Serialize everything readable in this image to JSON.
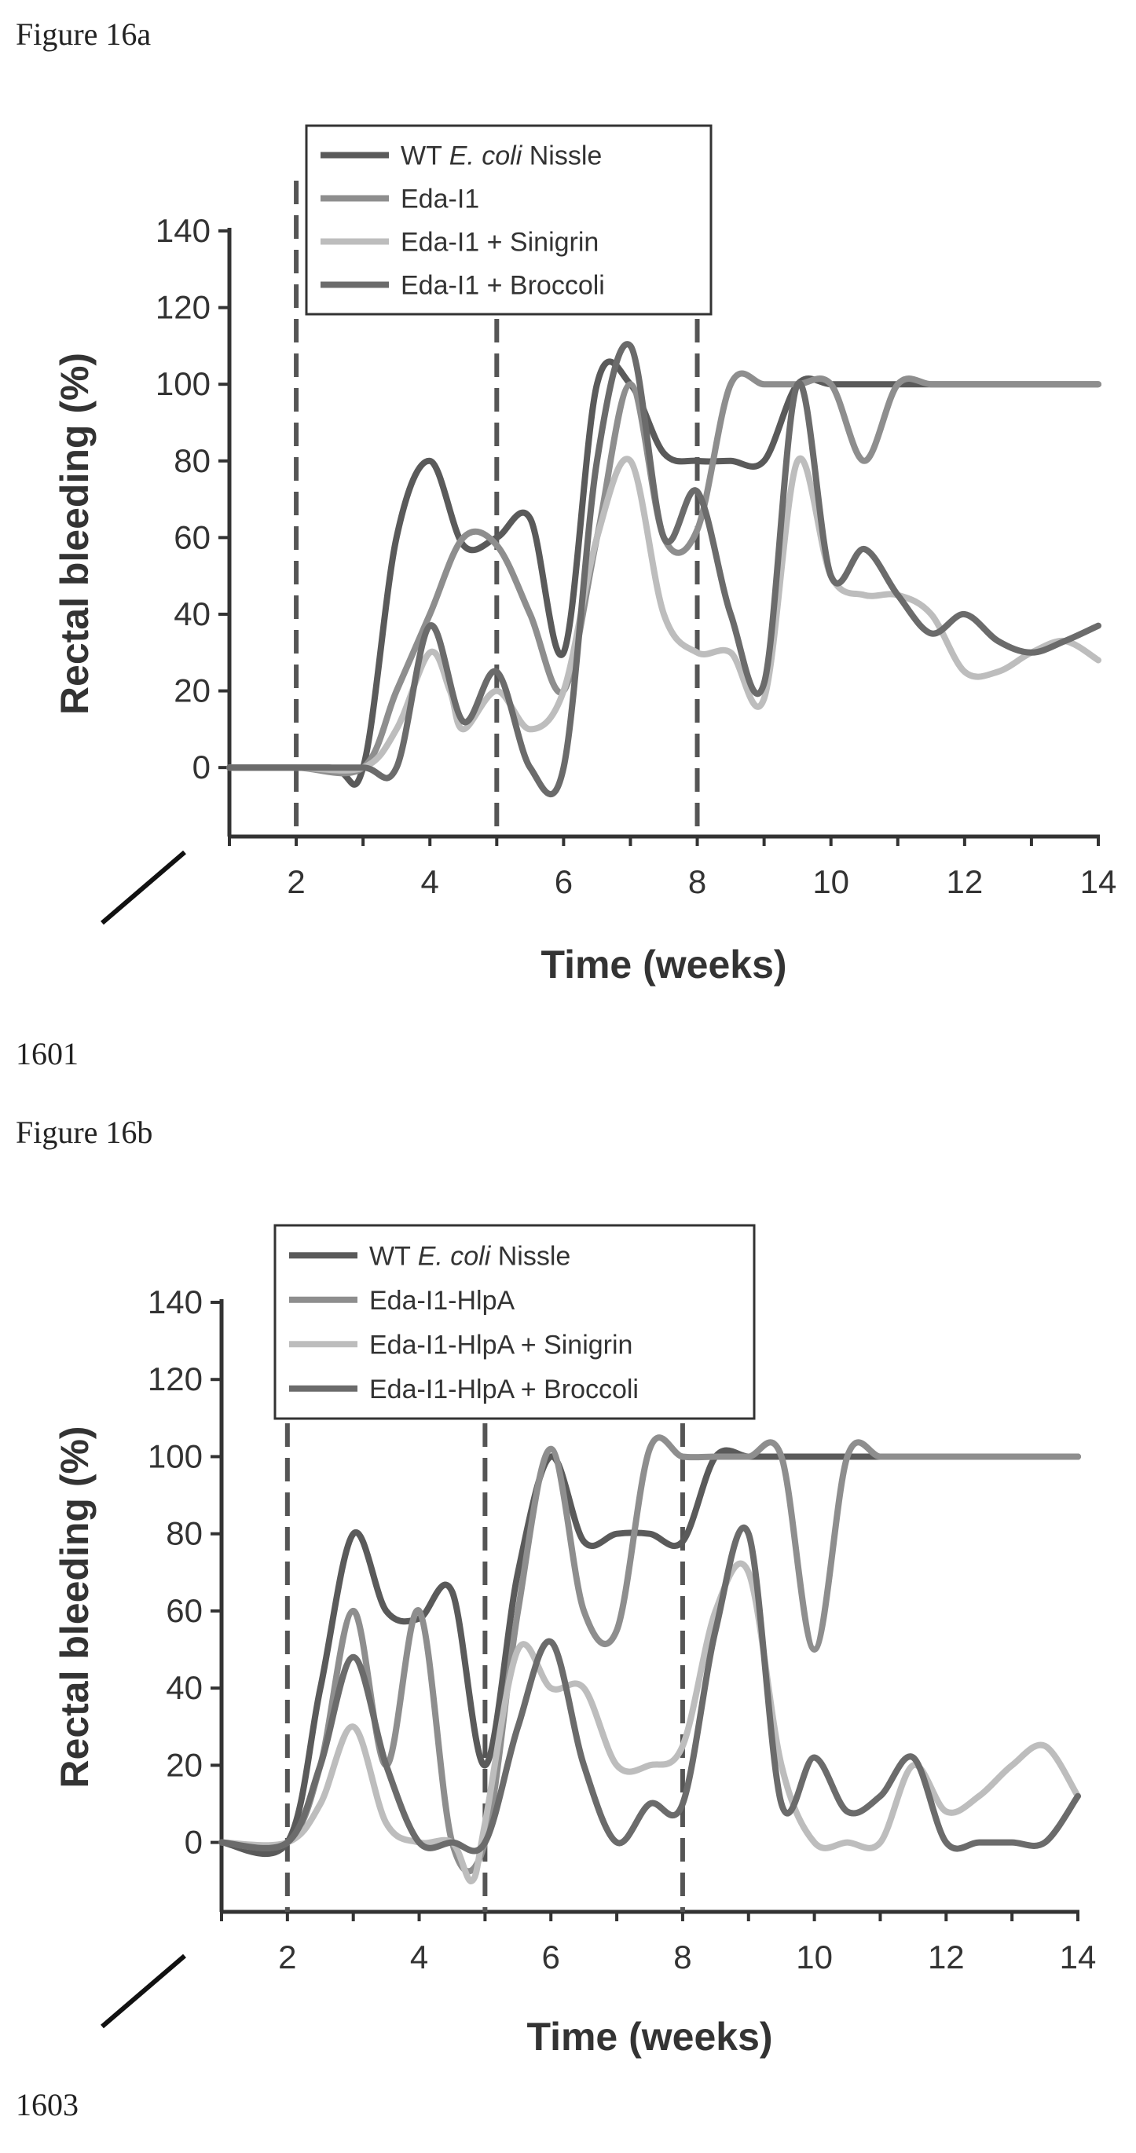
{
  "figures": [
    {
      "figure_label": "Figure 16a",
      "ref_number": "1601",
      "chart_data": {
        "type": "line",
        "xlabel": "Time (weeks)",
        "ylabel": "Rectal bleeding (%)",
        "xlim": [
          1,
          14
        ],
        "ylim": [
          -18,
          140
        ],
        "xticks": [
          2,
          4,
          6,
          8,
          10,
          12,
          14
        ],
        "yticks": [
          0,
          20,
          40,
          60,
          80,
          100,
          120,
          140
        ],
        "vlines": [
          2,
          5,
          8
        ],
        "legend_position": "top-center",
        "series": [
          {
            "name_parts": [
              "WT ",
              "E. coli",
              " Nissle"
            ],
            "color": "#5a5a5a",
            "x": [
              1,
              2.5,
              3,
              3.5,
              4,
              4.5,
              5,
              5.5,
              6,
              6.5,
              7,
              7.5,
              8,
              8.5,
              9,
              9.5,
              10,
              10.5,
              11,
              11.5,
              12,
              12.5,
              13,
              13.5,
              14
            ],
            "y": [
              0,
              0,
              0,
              60,
              80,
              58,
              60,
              65,
              30,
              100,
              100,
              82,
              80,
              80,
              80,
              100,
              100,
              100,
              100,
              100,
              100,
              100,
              100,
              100,
              100
            ]
          },
          {
            "name_parts": [
              "Eda-I1"
            ],
            "color": "#8e8e8e",
            "x": [
              1,
              2,
              3,
              3.5,
              4,
              4.5,
              5,
              5.5,
              6,
              6.5,
              7,
              7.5,
              8,
              8.5,
              9,
              9.5,
              10,
              10.5,
              11,
              11.5,
              12,
              12.5,
              13,
              13.5,
              14
            ],
            "y": [
              0,
              0,
              0,
              20,
              40,
              60,
              58,
              40,
              20,
              60,
              100,
              60,
              62,
              100,
              100,
              100,
              100,
              80,
              100,
              100,
              100,
              100,
              100,
              100,
              100
            ]
          },
          {
            "name_parts": [
              "Eda-I1 + Sinigrin"
            ],
            "color": "#bdbdbd",
            "x": [
              1,
              2,
              3,
              3.5,
              4,
              4.3,
              4.5,
              5,
              5.5,
              6,
              6.5,
              7,
              7.5,
              8,
              8.5,
              9,
              9.5,
              10,
              10.5,
              11,
              11.5,
              12,
              12.5,
              13,
              13.5,
              14
            ],
            "y": [
              0,
              0,
              0,
              10,
              30,
              20,
              10,
              20,
              10,
              20,
              60,
              80,
              40,
              30,
              30,
              18,
              80,
              50,
              45,
              45,
              40,
              25,
              25,
              30,
              33,
              28
            ]
          },
          {
            "name_parts": [
              "Eda-I1 + Broccoli"
            ],
            "color": "#6b6b6b",
            "x": [
              1,
              2,
              3,
              3.5,
              4,
              4.5,
              5,
              5.5,
              6,
              6.5,
              7,
              7.5,
              8,
              8.5,
              9,
              9.5,
              10,
              10.5,
              11,
              11.5,
              12,
              12.5,
              13,
              13.5,
              14
            ],
            "y": [
              0,
              0,
              0,
              0,
              37,
              12,
              25,
              0,
              0,
              80,
              110,
              60,
              72,
              40,
              22,
              100,
              50,
              57,
              45,
              35,
              40,
              33,
              30,
              33,
              37
            ]
          }
        ]
      }
    },
    {
      "figure_label": "Figure 16b",
      "ref_number": "1603",
      "chart_data": {
        "type": "line",
        "xlabel": "Time (weeks)",
        "ylabel": "Rectal bleeding (%)",
        "xlim": [
          1,
          14
        ],
        "ylim": [
          -18,
          140
        ],
        "xticks": [
          2,
          4,
          6,
          8,
          10,
          12,
          14
        ],
        "yticks": [
          0,
          20,
          40,
          60,
          80,
          100,
          120,
          140
        ],
        "vlines": [
          2,
          5,
          8
        ],
        "legend_position": "top-left",
        "series": [
          {
            "name_parts": [
              "WT ",
              "E. coli",
              " Nissle"
            ],
            "color": "#5a5a5a",
            "x": [
              1,
              2,
              2.5,
              3,
              3.5,
              4,
              4.5,
              5,
              5.5,
              6,
              6.5,
              7,
              7.5,
              8,
              8.5,
              9,
              9.5,
              10,
              10.5,
              11,
              11.5,
              12,
              12.5,
              13,
              13.5,
              14
            ],
            "y": [
              0,
              0,
              40,
              80,
              60,
              58,
              65,
              20,
              70,
              100,
              78,
              80,
              80,
              78,
              100,
              100,
              100,
              100,
              100,
              100,
              100,
              100,
              100,
              100,
              100,
              100
            ]
          },
          {
            "name_parts": [
              "Eda-I1-HlpA"
            ],
            "color": "#8e8e8e",
            "x": [
              1,
              2,
              2.5,
              3,
              3.5,
              4,
              4.5,
              5,
              5.5,
              6,
              6.5,
              7,
              7.5,
              8,
              8.5,
              9,
              9.5,
              10,
              10.5,
              11,
              11.5,
              12,
              12.5,
              13,
              13.5,
              14
            ],
            "y": [
              0,
              0,
              20,
              60,
              20,
              60,
              0,
              0,
              60,
              102,
              60,
              55,
              102,
              100,
              100,
              100,
              100,
              50,
              100,
              100,
              100,
              100,
              100,
              100,
              100,
              100
            ]
          },
          {
            "name_parts": [
              "Eda-I1-HlpA + Sinigrin"
            ],
            "color": "#bdbdbd",
            "x": [
              1,
              2,
              2.5,
              3,
              3.5,
              4,
              4.5,
              4.8,
              5,
              5.5,
              6,
              6.5,
              7,
              7.5,
              8,
              8.5,
              9,
              9.5,
              10,
              10.5,
              11,
              11.5,
              12,
              12.5,
              13,
              13.5,
              14
            ],
            "y": [
              0,
              0,
              10,
              30,
              5,
              0,
              0,
              -10,
              5,
              50,
              40,
              40,
              20,
              20,
              25,
              60,
              70,
              20,
              0,
              0,
              0,
              20,
              8,
              12,
              20,
              25,
              12
            ]
          },
          {
            "name_parts": [
              "Eda-I1-HlpA + Broccoli"
            ],
            "color": "#6b6b6b",
            "x": [
              1,
              2,
              2.5,
              3,
              3.5,
              4,
              4.5,
              5,
              5.5,
              6,
              6.5,
              7,
              7.5,
              8,
              8.5,
              9,
              9.5,
              10,
              10.5,
              11,
              11.5,
              12,
              12.5,
              13,
              13.5,
              14
            ],
            "y": [
              0,
              0,
              20,
              48,
              20,
              0,
              0,
              0,
              30,
              52,
              20,
              0,
              10,
              10,
              55,
              80,
              10,
              22,
              8,
              12,
              22,
              0,
              0,
              0,
              0,
              12
            ]
          }
        ]
      }
    }
  ]
}
